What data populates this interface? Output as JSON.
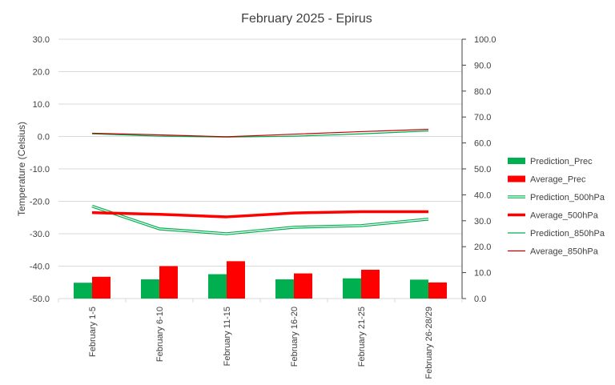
{
  "chart_data": {
    "type": "bar",
    "title": "February 2025 - Epirus",
    "ylabel": "Temperature (Celsius)",
    "y2label": "",
    "xlabel": "",
    "categories": [
      "February 1-5",
      "February 6-10",
      "February 11-15",
      "February 16-20",
      "February 21-25",
      "February 26-28/29"
    ],
    "ylim": [
      -50,
      30
    ],
    "y_ticks": [
      "-50.0",
      "-40.0",
      "-30.0",
      "-20.0",
      "-10.0",
      "0.0",
      "10.0",
      "20.0",
      "30.0"
    ],
    "y2lim": [
      0,
      100
    ],
    "y2_ticks": [
      "0.0",
      "10.0",
      "20.0",
      "30.0",
      "40.0",
      "50.0",
      "60.0",
      "70.0",
      "80.0",
      "90.0",
      "100.0"
    ],
    "grid": true,
    "legend_position": "right",
    "bar_series": [
      {
        "name": "Prediction_Prec",
        "axis": "right",
        "color": "#00b050",
        "values": [
          6.1,
          7.4,
          9.4,
          7.4,
          7.8,
          7.3
        ]
      },
      {
        "name": "Average_Prec",
        "axis": "right",
        "color": "#ff0000",
        "values": [
          8.4,
          12.5,
          14.4,
          9.7,
          11.1,
          6.2
        ]
      }
    ],
    "line_series": [
      {
        "name": "Prediction_500hPa",
        "axis": "left",
        "color": "#00b050",
        "style": "double",
        "values": [
          -21.5,
          -28.5,
          -30.0,
          -28.0,
          -27.5,
          -25.5
        ]
      },
      {
        "name": "Average_500hPa",
        "axis": "left",
        "color": "#ff0000",
        "style": "thick",
        "values": [
          -23.5,
          -24.0,
          -24.8,
          -23.6,
          -23.2,
          -23.2
        ]
      },
      {
        "name": "Prediction_850hPa",
        "axis": "left",
        "color": "#00b050",
        "style": "thin",
        "values": [
          0.8,
          0.1,
          -0.2,
          0.1,
          0.8,
          1.7
        ]
      },
      {
        "name": "Average_850hPa",
        "axis": "left",
        "color": "#c00000",
        "style": "thin",
        "values": [
          1.0,
          0.5,
          -0.1,
          0.7,
          1.5,
          2.2
        ]
      }
    ]
  }
}
